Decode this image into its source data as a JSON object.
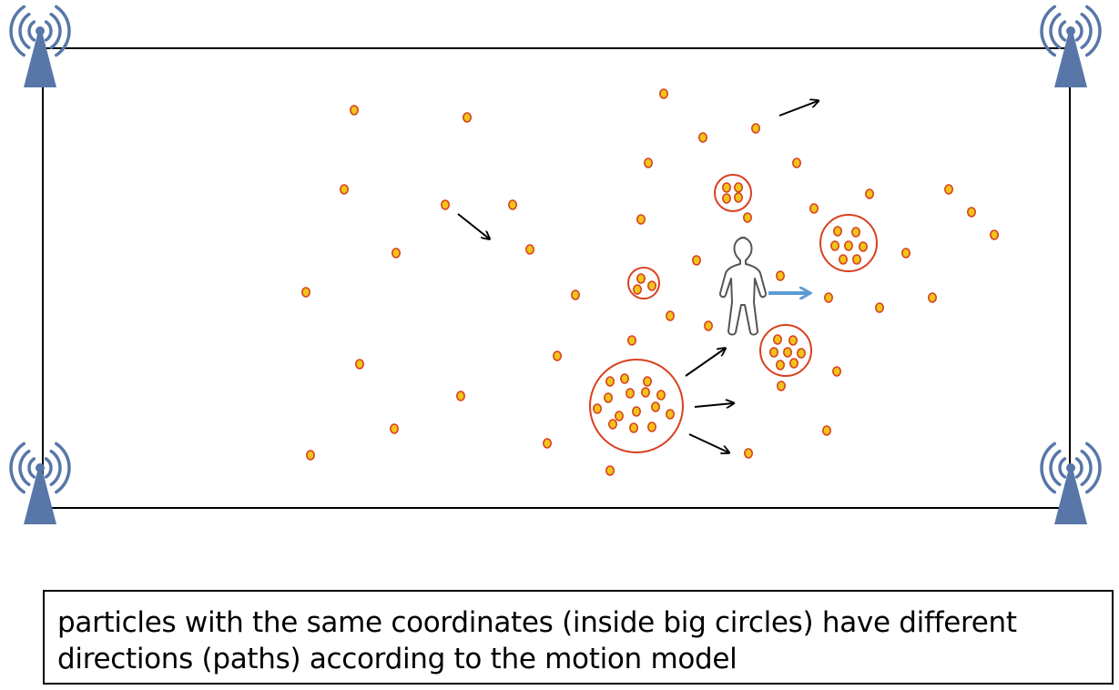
{
  "caption": "particles with the same coordinates (inside big circles) have different directions (paths) according to the motion model",
  "colors": {
    "particle_fill": "#f0c419",
    "particle_stroke": "#d9401f",
    "cluster_stroke": "#d9401f",
    "arrow": "#000000",
    "person_arrow": "#5b9bd5",
    "antenna": "#5877a8",
    "person_stroke": "#555555"
  },
  "icons": [
    "antenna-icon",
    "person-icon",
    "arrow-icon"
  ]
}
